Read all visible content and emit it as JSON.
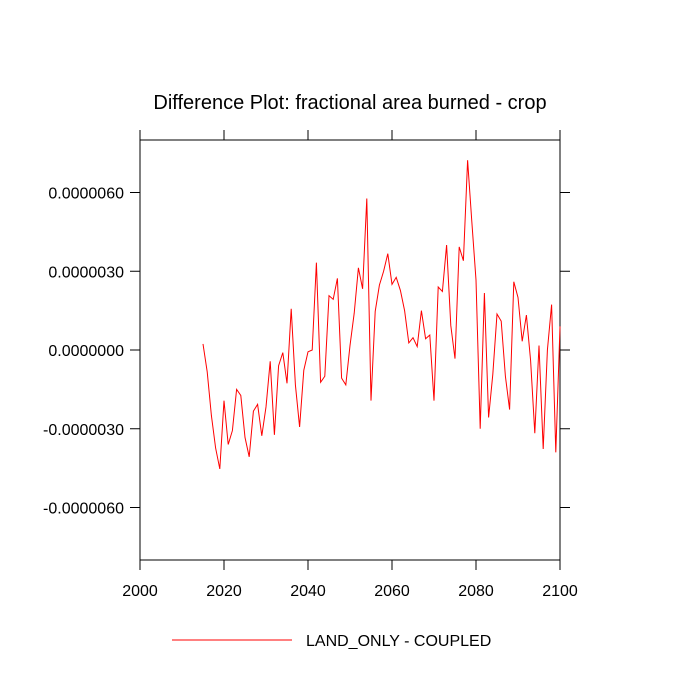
{
  "chart_data": {
    "type": "line",
    "title": "Difference Plot: fractional area burned - crop",
    "x": [
      2015,
      2016,
      2017,
      2018,
      2019,
      2020,
      2021,
      2022,
      2023,
      2024,
      2025,
      2026,
      2027,
      2028,
      2029,
      2030,
      2031,
      2032,
      2033,
      2034,
      2035,
      2036,
      2037,
      2038,
      2039,
      2040,
      2041,
      2042,
      2043,
      2044,
      2045,
      2046,
      2047,
      2048,
      2049,
      2050,
      2051,
      2052,
      2053,
      2054,
      2055,
      2056,
      2057,
      2058,
      2059,
      2060,
      2061,
      2062,
      2063,
      2064,
      2065,
      2066,
      2067,
      2068,
      2069,
      2070,
      2071,
      2072,
      2073,
      2074,
      2075,
      2076,
      2077,
      2078,
      2079,
      2080,
      2081,
      2082,
      2083,
      2084,
      2085,
      2086,
      2087,
      2088,
      2089,
      2090,
      2091,
      2092,
      2093,
      2094,
      2095,
      2096,
      2097,
      2098,
      2099,
      2100
    ],
    "series": [
      {
        "name": "LAND_ONLY - COUPLED",
        "color": "#ff0000",
        "values": [
          2.3e-07,
          -8.3e-07,
          -2.5e-06,
          -3.73e-06,
          -4.53e-06,
          -1.93e-06,
          -3.6e-06,
          -3.07e-06,
          -1.5e-06,
          -1.73e-06,
          -3.33e-06,
          -4.07e-06,
          -2.33e-06,
          -2.07e-06,
          -3.27e-06,
          -2.17e-06,
          -4.3e-07,
          -3.23e-06,
          -6e-07,
          -1e-07,
          -1.27e-06,
          1.57e-06,
          -1.33e-06,
          -2.93e-06,
          -7.7e-07,
          -7e-08,
          0,
          3.33e-06,
          -1.23e-06,
          -1e-06,
          2.07e-06,
          1.93e-06,
          2.73e-06,
          -1.07e-06,
          -1.33e-06,
          1.7e-07,
          1.4e-06,
          3.13e-06,
          2.33e-06,
          5.77e-06,
          -1.93e-06,
          1.47e-06,
          2.47e-06,
          3e-06,
          3.67e-06,
          2.5e-06,
          2.77e-06,
          2.27e-06,
          1.5e-06,
          2.7e-07,
          4.7e-07,
          1.3e-07,
          1.5e-06,
          4.3e-07,
          5.7e-07,
          -1.93e-06,
          2.4e-06,
          2.23e-06,
          4e-06,
          9.3e-07,
          -3.3e-07,
          3.93e-06,
          3.4e-06,
          7.23e-06,
          4.9e-06,
          2.67e-06,
          -3e-06,
          2.17e-06,
          -2.57e-06,
          -9.3e-07,
          1.37e-06,
          1.1e-06,
          -1e-06,
          -2.27e-06,
          2.6e-06,
          2e-06,
          3.3e-07,
          1.33e-06,
          -4e-07,
          -3.17e-06,
          1.7e-07,
          -3.77e-06,
          0,
          1.73e-06,
          -3.9e-06,
          9e-07
        ]
      }
    ],
    "xlim": [
      2000,
      2100
    ],
    "xticks": [
      2000,
      2020,
      2040,
      2060,
      2080,
      2100
    ],
    "ylim": [
      -8e-06,
      8e-06
    ],
    "yticks": [
      {
        "value": -6e-06,
        "label": "-0.0000060"
      },
      {
        "value": -3e-06,
        "label": "-0.0000030"
      },
      {
        "value": 0,
        "label": "0.0000000"
      },
      {
        "value": 3e-06,
        "label": "0.0000030"
      },
      {
        "value": 6e-06,
        "label": "0.0000060"
      }
    ],
    "legend": "bottom"
  }
}
